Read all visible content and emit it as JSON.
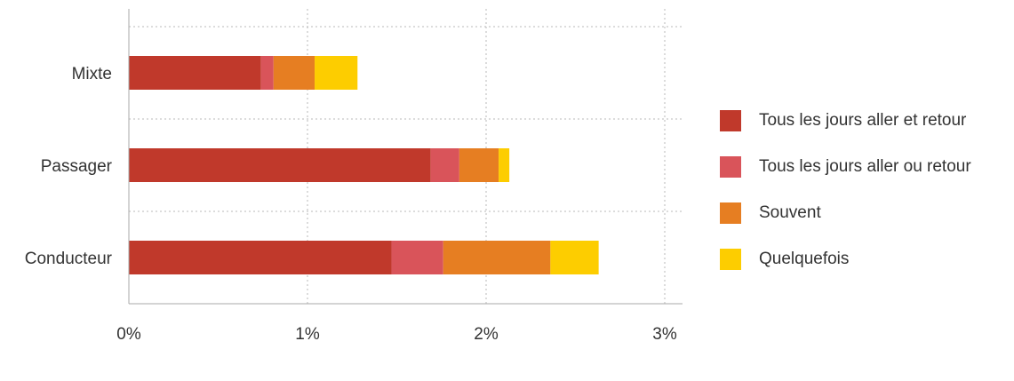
{
  "chart_data": {
    "type": "bar",
    "orientation": "horizontal",
    "stacked": true,
    "categories": [
      "Mixte",
      "Passager",
      "Conducteur"
    ],
    "series": [
      {
        "name": "Tous les jours aller et retour",
        "color": "#c0392b",
        "values": [
          0.74,
          1.69,
          1.47
        ]
      },
      {
        "name": "Tous les jours aller ou retour",
        "color": "#d9545a",
        "values": [
          0.07,
          0.16,
          0.29
        ]
      },
      {
        "name": "Souvent",
        "color": "#e67e22",
        "values": [
          0.23,
          0.22,
          0.6
        ]
      },
      {
        "name": "Quelquefois",
        "color": "#fdcd00",
        "values": [
          0.24,
          0.06,
          0.27
        ]
      }
    ],
    "x_ticks": [
      "0%",
      "1%",
      "2%",
      "3%"
    ],
    "xlim": [
      0,
      3
    ],
    "grid": "dotted",
    "legend_position": "right"
  }
}
